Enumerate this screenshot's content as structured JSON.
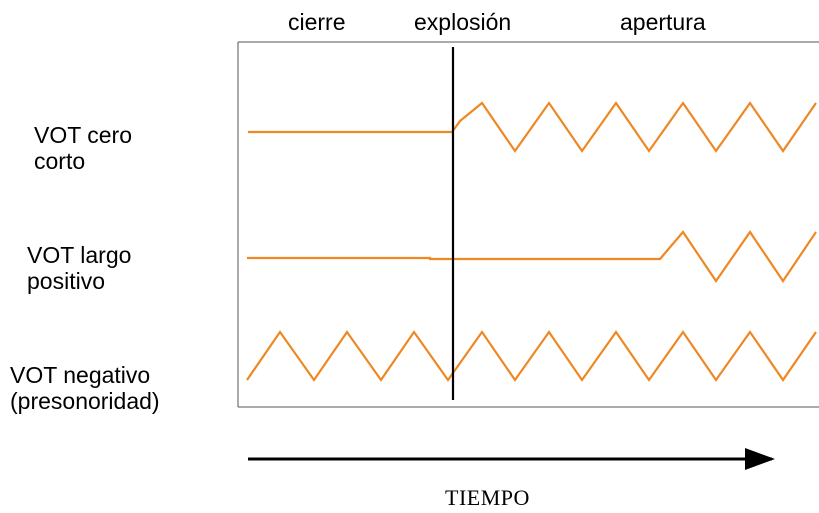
{
  "phases": {
    "closure": "cierre",
    "burst": "explosión",
    "opening": "apertura"
  },
  "rows": [
    {
      "label": "VOT cero\ncorto"
    },
    {
      "label": "VOT largo\npositivo"
    },
    {
      "label": "VOT negativo\n(presonoridad)"
    }
  ],
  "time_axis": {
    "label": "TIEMPO"
  },
  "colors": {
    "wave": "#ee8822",
    "line": "#000000",
    "frame": "#555555"
  }
}
